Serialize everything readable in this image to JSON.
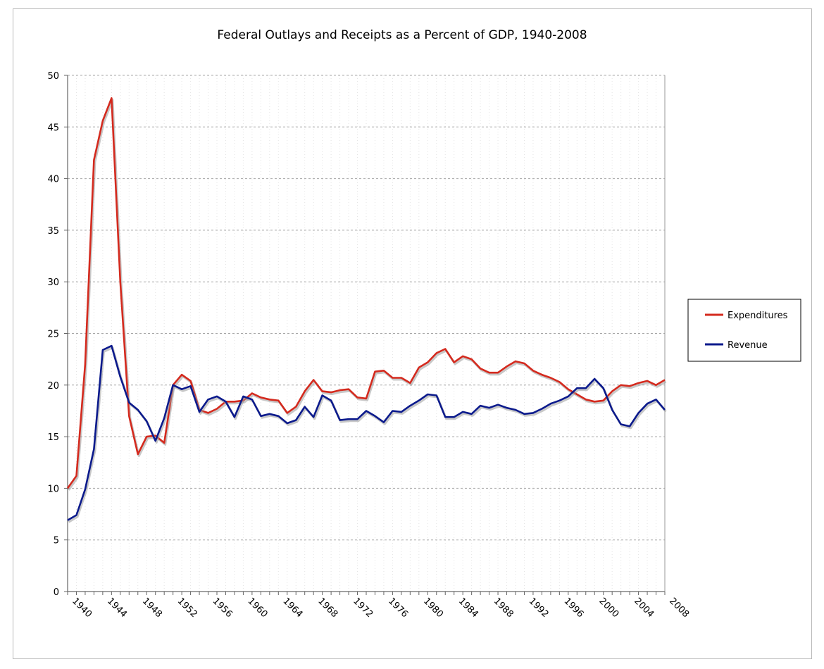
{
  "chart_data": {
    "type": "line",
    "title": "Federal Outlays and Receipts as a Percent of GDP, 1940-2008",
    "xlabel": "",
    "ylabel": "",
    "ylim": [
      0,
      50
    ],
    "yticks": [
      "0",
      "5",
      "10",
      "15",
      "20",
      "25",
      "30",
      "35",
      "40",
      "45",
      "50"
    ],
    "xlim": [
      1940,
      2008
    ],
    "xticks": [
      "1940",
      "1944",
      "1948",
      "1952",
      "1956",
      "1960",
      "1964",
      "1968",
      "1972",
      "1976",
      "1980",
      "1984",
      "1988",
      "1992",
      "1996",
      "2000",
      "2004",
      "2008"
    ],
    "grid": true,
    "legend_position": "right",
    "x": [
      1940,
      1941,
      1942,
      1943,
      1944,
      1945,
      1946,
      1947,
      1948,
      1949,
      1950,
      1951,
      1952,
      1953,
      1954,
      1955,
      1956,
      1957,
      1958,
      1959,
      1960,
      1961,
      1962,
      1963,
      1964,
      1965,
      1966,
      1967,
      1968,
      1969,
      1970,
      1971,
      1972,
      1973,
      1974,
      1975,
      1976,
      1977,
      1978,
      1979,
      1980,
      1981,
      1982,
      1983,
      1984,
      1985,
      1986,
      1987,
      1988,
      1989,
      1990,
      1991,
      1992,
      1993,
      1994,
      1995,
      1996,
      1997,
      1998,
      1999,
      2000,
      2001,
      2002,
      2003,
      2004,
      2005,
      2006,
      2007,
      2008
    ],
    "series": [
      {
        "name": "Expenditures",
        "color": "#d42a1e",
        "values": [
          10.0,
          11.2,
          22.0,
          41.8,
          45.6,
          47.8,
          30.0,
          17.0,
          13.3,
          15.0,
          15.1,
          14.4,
          20.0,
          21.0,
          20.4,
          17.6,
          17.3,
          17.7,
          18.4,
          18.4,
          18.5,
          19.2,
          18.8,
          18.6,
          18.5,
          17.3,
          17.9,
          19.4,
          20.5,
          19.4,
          19.3,
          19.5,
          19.6,
          18.8,
          18.7,
          21.3,
          21.4,
          20.7,
          20.7,
          20.2,
          21.7,
          22.2,
          23.1,
          23.5,
          22.2,
          22.8,
          22.5,
          21.6,
          21.2,
          21.2,
          21.8,
          22.3,
          22.1,
          21.4,
          21.0,
          20.7,
          20.3,
          19.6,
          19.1,
          18.6,
          18.4,
          18.5,
          19.4,
          20.0,
          19.9,
          20.2,
          20.4,
          20.0,
          20.5
        ]
      },
      {
        "name": "Revenue",
        "color": "#0b1a8c",
        "values": [
          6.9,
          7.4,
          9.9,
          13.8,
          23.4,
          23.8,
          20.8,
          18.3,
          17.6,
          16.5,
          14.6,
          16.8,
          20.0,
          19.6,
          19.9,
          17.4,
          18.6,
          18.9,
          18.4,
          16.9,
          18.9,
          18.6,
          17.0,
          17.2,
          17.0,
          16.3,
          16.6,
          17.9,
          16.9,
          19.0,
          18.5,
          16.6,
          16.7,
          16.7,
          17.5,
          17.0,
          16.4,
          17.5,
          17.4,
          18.0,
          18.5,
          19.1,
          19.0,
          16.9,
          16.9,
          17.4,
          17.2,
          18.0,
          17.8,
          18.1,
          17.8,
          17.6,
          17.2,
          17.3,
          17.7,
          18.2,
          18.5,
          18.9,
          19.7,
          19.7,
          20.6,
          19.7,
          17.6,
          16.2,
          16.0,
          17.3,
          18.2,
          18.6,
          17.6
        ]
      }
    ]
  }
}
